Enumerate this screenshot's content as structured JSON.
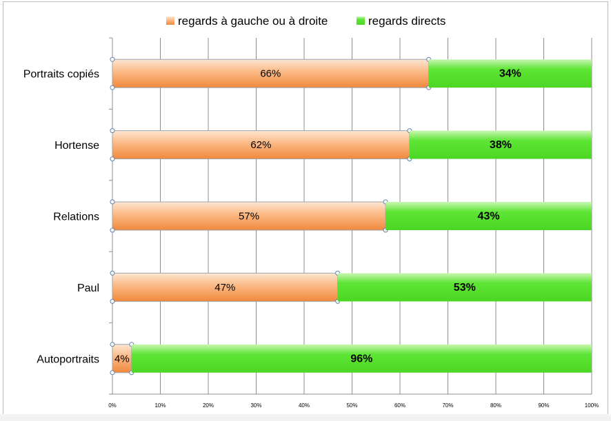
{
  "chart_data": {
    "type": "bar",
    "orientation": "horizontal",
    "stacked": "percent",
    "categories": [
      "Portraits copiés",
      "Hortense",
      "Relations",
      "Paul",
      "Autoportraits"
    ],
    "series": [
      {
        "name": "regards à gauche ou à droite",
        "color": "#f79646",
        "values": [
          66,
          62,
          57,
          47,
          4
        ],
        "labels": [
          "66%",
          "62%",
          "57%",
          "47%",
          "4%"
        ]
      },
      {
        "name": "regards directs",
        "color": "#5ae232",
        "values": [
          34,
          38,
          43,
          53,
          96
        ],
        "labels": [
          "34%",
          "38%",
          "43%",
          "53%",
          "96%"
        ]
      }
    ],
    "xticks": [
      "0%",
      "10%",
      "20%",
      "30%",
      "40%",
      "50%",
      "60%",
      "70%",
      "80%",
      "90%",
      "100%"
    ],
    "xlim": [
      0,
      100
    ],
    "grid": true,
    "legend_position": "top"
  }
}
